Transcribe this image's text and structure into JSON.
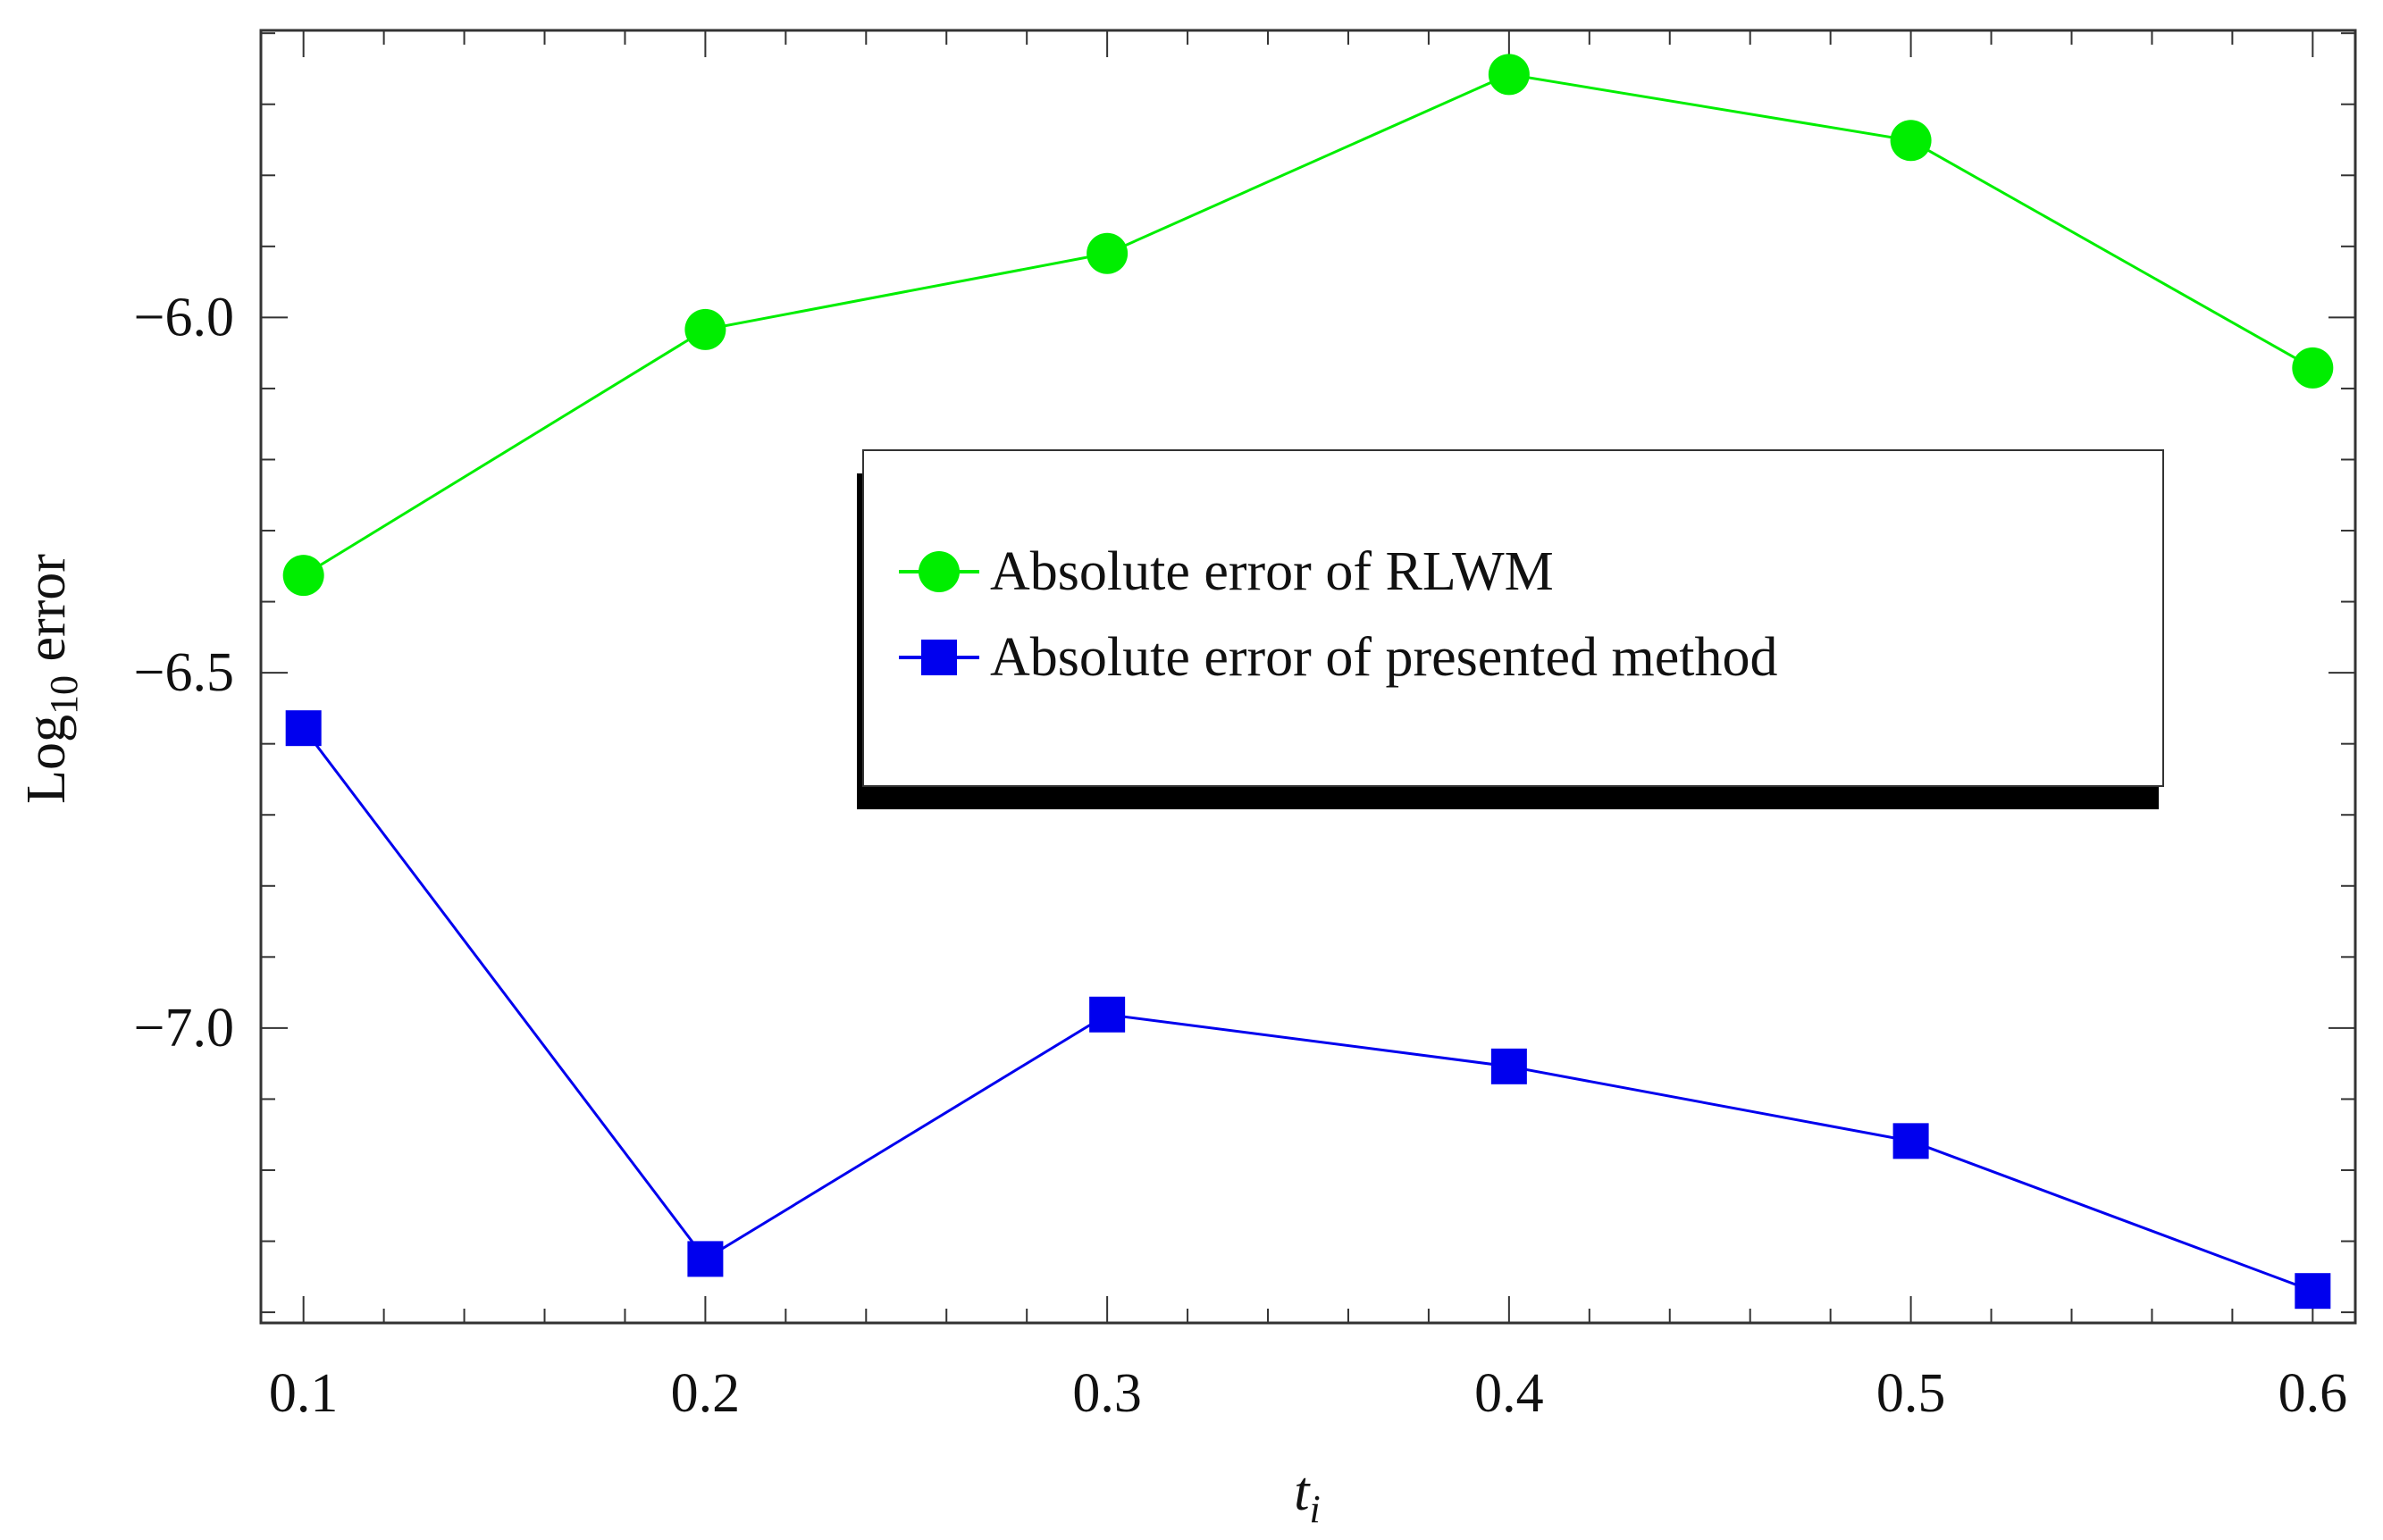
{
  "chart_data": {
    "type": "line",
    "title": "",
    "xlabel": "t",
    "xlabel_sub": "i",
    "ylabel": "Log",
    "ylabel_sub": "10",
    "ylabel_suffix": " error",
    "xlim": [
      0.0894,
      0.6106
    ],
    "ylim": [
      -7.415,
      -5.596
    ],
    "x_ticks": [
      0.1,
      0.2,
      0.3,
      0.4,
      0.5,
      0.6
    ],
    "x_tick_labels": [
      "0.1",
      "0.2",
      "0.3",
      "0.4",
      "0.5",
      "0.6"
    ],
    "y_ticks": [
      -6.0,
      -6.5,
      -7.0
    ],
    "y_tick_labels": [
      "−6.0",
      "−6.5",
      "−7.0"
    ],
    "grid": false,
    "legend_placement": "center",
    "x": [
      0.1,
      0.2,
      0.3,
      0.4,
      0.5,
      0.6
    ],
    "series": [
      {
        "name": "Absolute error of RLWM",
        "color": "#00ee00",
        "marker": "circle",
        "values": [
          -6.363,
          -6.017,
          -5.91,
          -5.658,
          -5.751,
          -6.071
        ]
      },
      {
        "name": "Absolute error of presented method",
        "color": "#0000ee",
        "marker": "square",
        "values": [
          -6.578,
          -7.325,
          -6.981,
          -7.054,
          -7.159,
          -7.37
        ]
      }
    ]
  }
}
